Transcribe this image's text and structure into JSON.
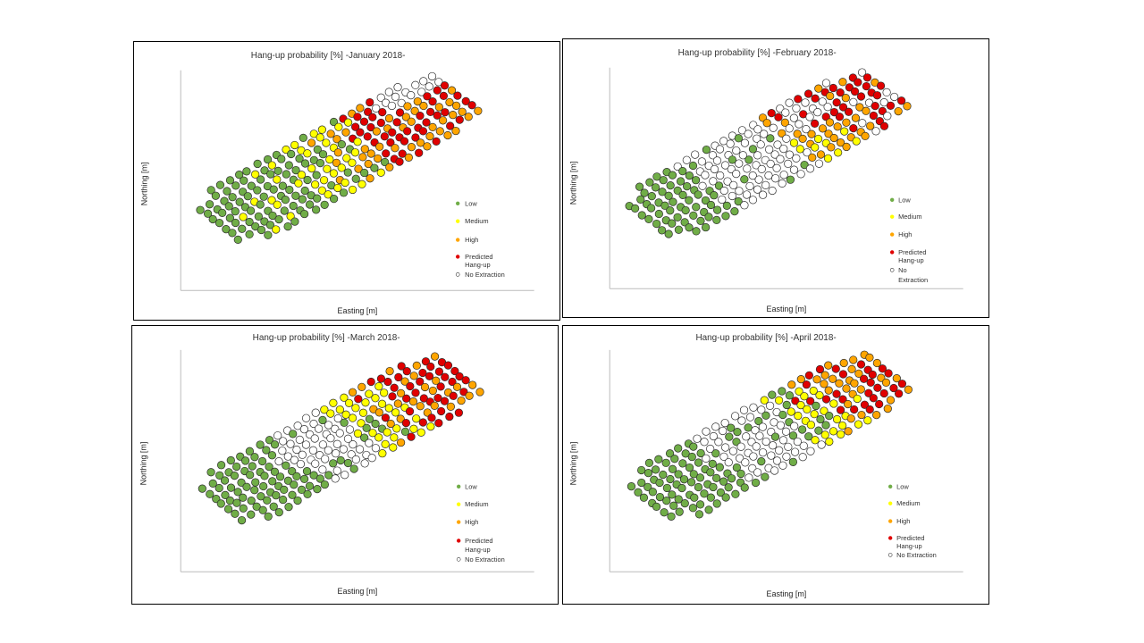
{
  "legend": {
    "low": "Low",
    "medium": "Medium",
    "high": "High",
    "predicted_l1": "Predicted",
    "predicted_l2": "Hang-up",
    "no_ext": "No Extraction",
    "no_ext_l1": "No",
    "no_ext_l2": "Extraction"
  },
  "colors": {
    "low": "#70ad47",
    "medium": "#ffff00",
    "high": "#ffa500",
    "predicted": "#e00000",
    "no_extraction": "#ffffff"
  },
  "chart_data": [
    {
      "type": "scatter",
      "title": "Hang-up probability [%] -January 2018-",
      "xlabel": "Easting [m]",
      "ylabel": "Northing [m]",
      "grid": false,
      "legend_position": "right",
      "categories": [
        "Low",
        "Medium",
        "High",
        "Predicted Hang-up",
        "No Extraction"
      ]
    },
    {
      "type": "scatter",
      "title": "Hang-up probability [%] -February 2018-",
      "xlabel": "Easting [m]",
      "ylabel": "Northing [m]",
      "grid": false,
      "legend_position": "right",
      "categories": [
        "Low",
        "Medium",
        "High",
        "Predicted Hang-up",
        "No Extraction"
      ]
    },
    {
      "type": "scatter",
      "title": "Hang-up probability [%] -March 2018-",
      "xlabel": "Easting [m]",
      "ylabel": "Northing [m]",
      "grid": false,
      "legend_position": "right",
      "categories": [
        "Low",
        "Medium",
        "High",
        "Predicted Hang-up",
        "No Extraction"
      ]
    },
    {
      "type": "scatter",
      "title": "Hang-up probability [%] -April 2018-",
      "xlabel": "Easting [m]",
      "ylabel": "Northing [m]",
      "grid": false,
      "legend_position": "right",
      "categories": [
        "Low",
        "Medium",
        "High",
        "Predicted Hang-up",
        "No Extraction"
      ]
    }
  ]
}
